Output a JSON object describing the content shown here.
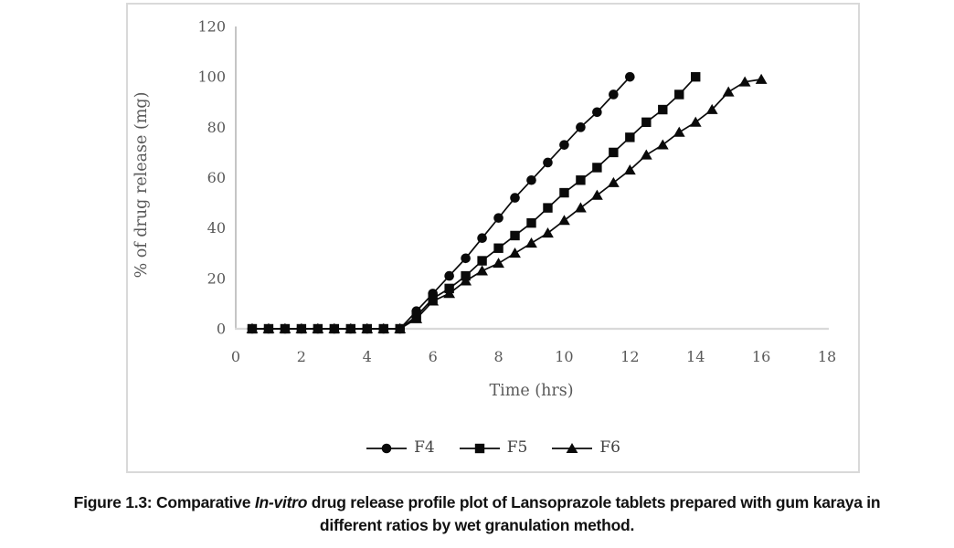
{
  "figure": {
    "caption": {
      "line1_before_italic": "Figure 1.3: Comparative ",
      "line1_italic": "In-vitro",
      "line1_after_italic": " drug release profile plot of Lansoprazole tablets prepared with gum karaya in",
      "line2": "different ratios by wet granulation method."
    }
  },
  "chart_data": {
    "type": "line",
    "title": "",
    "xlabel": "Time (hrs)",
    "ylabel": "% of drug release (mg)",
    "xlim": [
      0,
      18
    ],
    "ylim": [
      0,
      120
    ],
    "xticks": [
      0,
      2,
      4,
      6,
      8,
      10,
      12,
      14,
      16,
      18
    ],
    "yticks": [
      0,
      20,
      40,
      60,
      80,
      100,
      120
    ],
    "grid": false,
    "legend_position": "bottom-center",
    "colors": {
      "series": "#0a0a0a",
      "axis_text": "#595959",
      "y_axis_line": "#a6a6a6",
      "x_axis_line": "#d9d9d9",
      "plot_border": "#d9d9d9"
    },
    "series": [
      {
        "name": "F4",
        "marker": "circle",
        "points": [
          [
            0.5,
            0
          ],
          [
            1,
            0
          ],
          [
            1.5,
            0
          ],
          [
            2,
            0
          ],
          [
            2.5,
            0
          ],
          [
            3,
            0
          ],
          [
            3.5,
            0
          ],
          [
            4,
            0
          ],
          [
            4.5,
            0
          ],
          [
            5,
            0
          ],
          [
            5.5,
            7
          ],
          [
            6,
            14
          ],
          [
            6.5,
            21
          ],
          [
            7,
            28
          ],
          [
            7.5,
            36
          ],
          [
            8,
            44
          ],
          [
            8.5,
            52
          ],
          [
            9,
            59
          ],
          [
            9.5,
            66
          ],
          [
            10,
            73
          ],
          [
            10.5,
            80
          ],
          [
            11,
            86
          ],
          [
            11.5,
            93
          ],
          [
            12,
            100
          ]
        ]
      },
      {
        "name": "F5",
        "marker": "square",
        "points": [
          [
            0.5,
            0
          ],
          [
            1,
            0
          ],
          [
            1.5,
            0
          ],
          [
            2,
            0
          ],
          [
            2.5,
            0
          ],
          [
            3,
            0
          ],
          [
            3.5,
            0
          ],
          [
            4,
            0
          ],
          [
            4.5,
            0
          ],
          [
            5,
            0
          ],
          [
            5.5,
            5
          ],
          [
            6,
            12
          ],
          [
            6.5,
            16
          ],
          [
            7,
            21
          ],
          [
            7.5,
            27
          ],
          [
            8,
            32
          ],
          [
            8.5,
            37
          ],
          [
            9,
            42
          ],
          [
            9.5,
            48
          ],
          [
            10,
            54
          ],
          [
            10.5,
            59
          ],
          [
            11,
            64
          ],
          [
            11.5,
            70
          ],
          [
            12,
            76
          ],
          [
            12.5,
            82
          ],
          [
            13,
            87
          ],
          [
            13.5,
            93
          ],
          [
            14,
            100
          ]
        ]
      },
      {
        "name": "F6",
        "marker": "triangle",
        "points": [
          [
            0.5,
            0
          ],
          [
            1,
            0
          ],
          [
            1.5,
            0
          ],
          [
            2,
            0
          ],
          [
            2.5,
            0
          ],
          [
            3,
            0
          ],
          [
            3.5,
            0
          ],
          [
            4,
            0
          ],
          [
            4.5,
            0
          ],
          [
            5,
            0
          ],
          [
            5.5,
            4
          ],
          [
            6,
            11
          ],
          [
            6.5,
            14
          ],
          [
            7,
            19
          ],
          [
            7.5,
            23
          ],
          [
            8,
            26
          ],
          [
            8.5,
            30
          ],
          [
            9,
            34
          ],
          [
            9.5,
            38
          ],
          [
            10,
            43
          ],
          [
            10.5,
            48
          ],
          [
            11,
            53
          ],
          [
            11.5,
            58
          ],
          [
            12,
            63
          ],
          [
            12.5,
            69
          ],
          [
            13,
            73
          ],
          [
            13.5,
            78
          ],
          [
            14,
            82
          ],
          [
            14.5,
            87
          ],
          [
            15,
            94
          ],
          [
            15.5,
            98
          ],
          [
            16,
            99
          ]
        ]
      }
    ]
  }
}
